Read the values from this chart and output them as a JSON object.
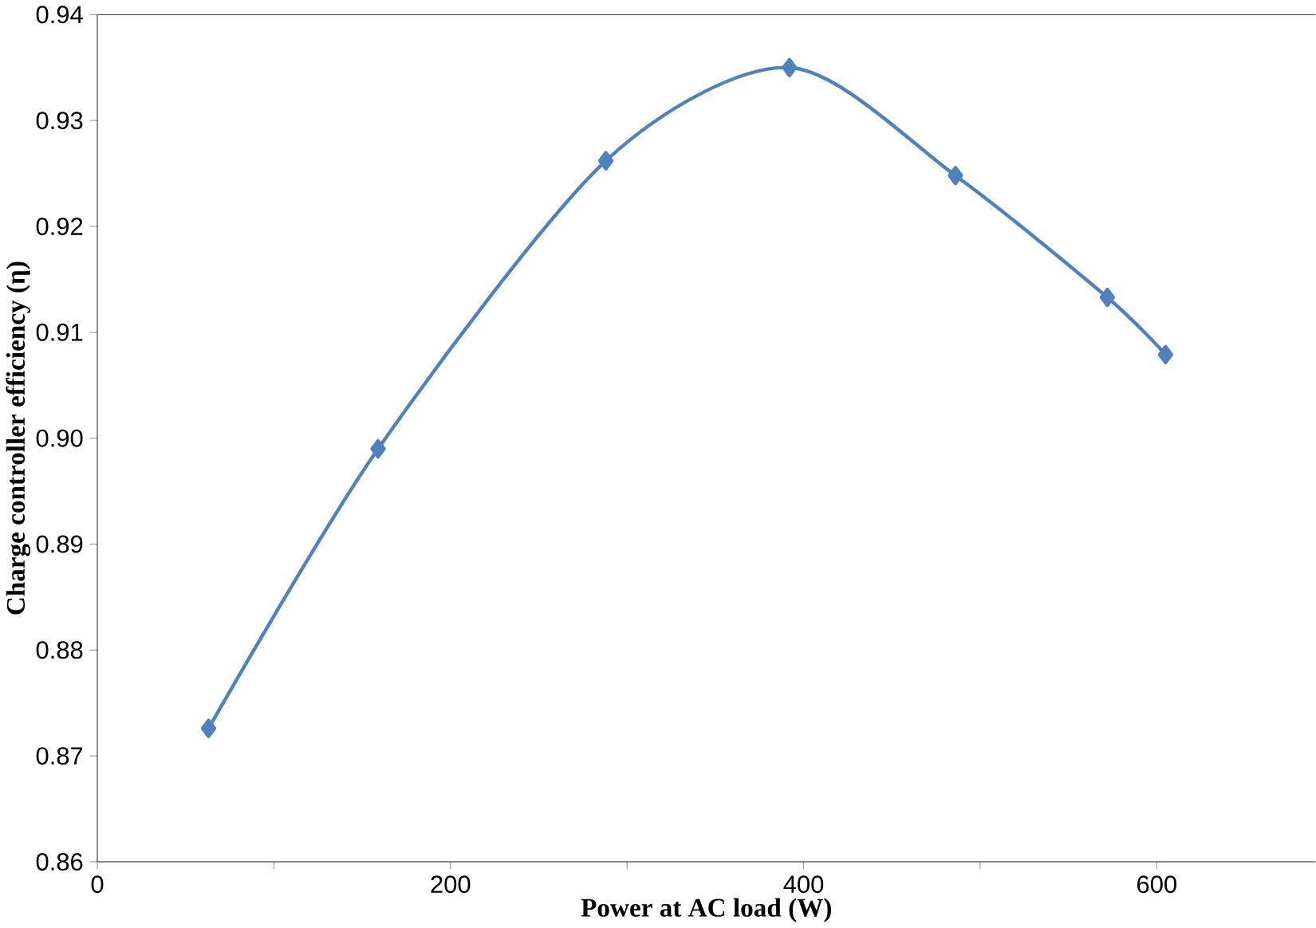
{
  "chart_data": {
    "type": "line",
    "xlabel": "Power at AC load (W)",
    "ylabel": "Charge controller efficiency (η)",
    "x": [
      63,
      159,
      288,
      392,
      486,
      572,
      605
    ],
    "series": [
      {
        "color": "#4f81bd",
        "values": [
          0.8726,
          0.899,
          0.9262,
          0.935,
          0.9248,
          0.9133,
          0.9079
        ]
      }
    ],
    "xlim": [
      0,
      690
    ],
    "xticks": [
      0,
      {
        "value": 100,
        "label": null
      },
      200,
      {
        "value": 300,
        "label": null
      },
      400,
      {
        "value": 500,
        "label": null
      },
      600
    ],
    "ylim": [
      0.86,
      0.94
    ],
    "yticks": [
      {
        "value": 0.86,
        "label": "0.86"
      },
      {
        "value": 0.87,
        "label": "0.87"
      },
      {
        "value": 0.88,
        "label": "0.88"
      },
      {
        "value": 0.89,
        "label": "0.89"
      },
      {
        "value": 0.9,
        "label": "0.90"
      },
      {
        "value": 0.91,
        "label": "0.91"
      },
      {
        "value": 0.92,
        "label": "0.92"
      },
      {
        "value": 0.93,
        "label": "0.93"
      },
      {
        "value": 0.94,
        "label": "0.94"
      }
    ],
    "grid": false,
    "marker": "diamond",
    "line_style": "solid"
  }
}
